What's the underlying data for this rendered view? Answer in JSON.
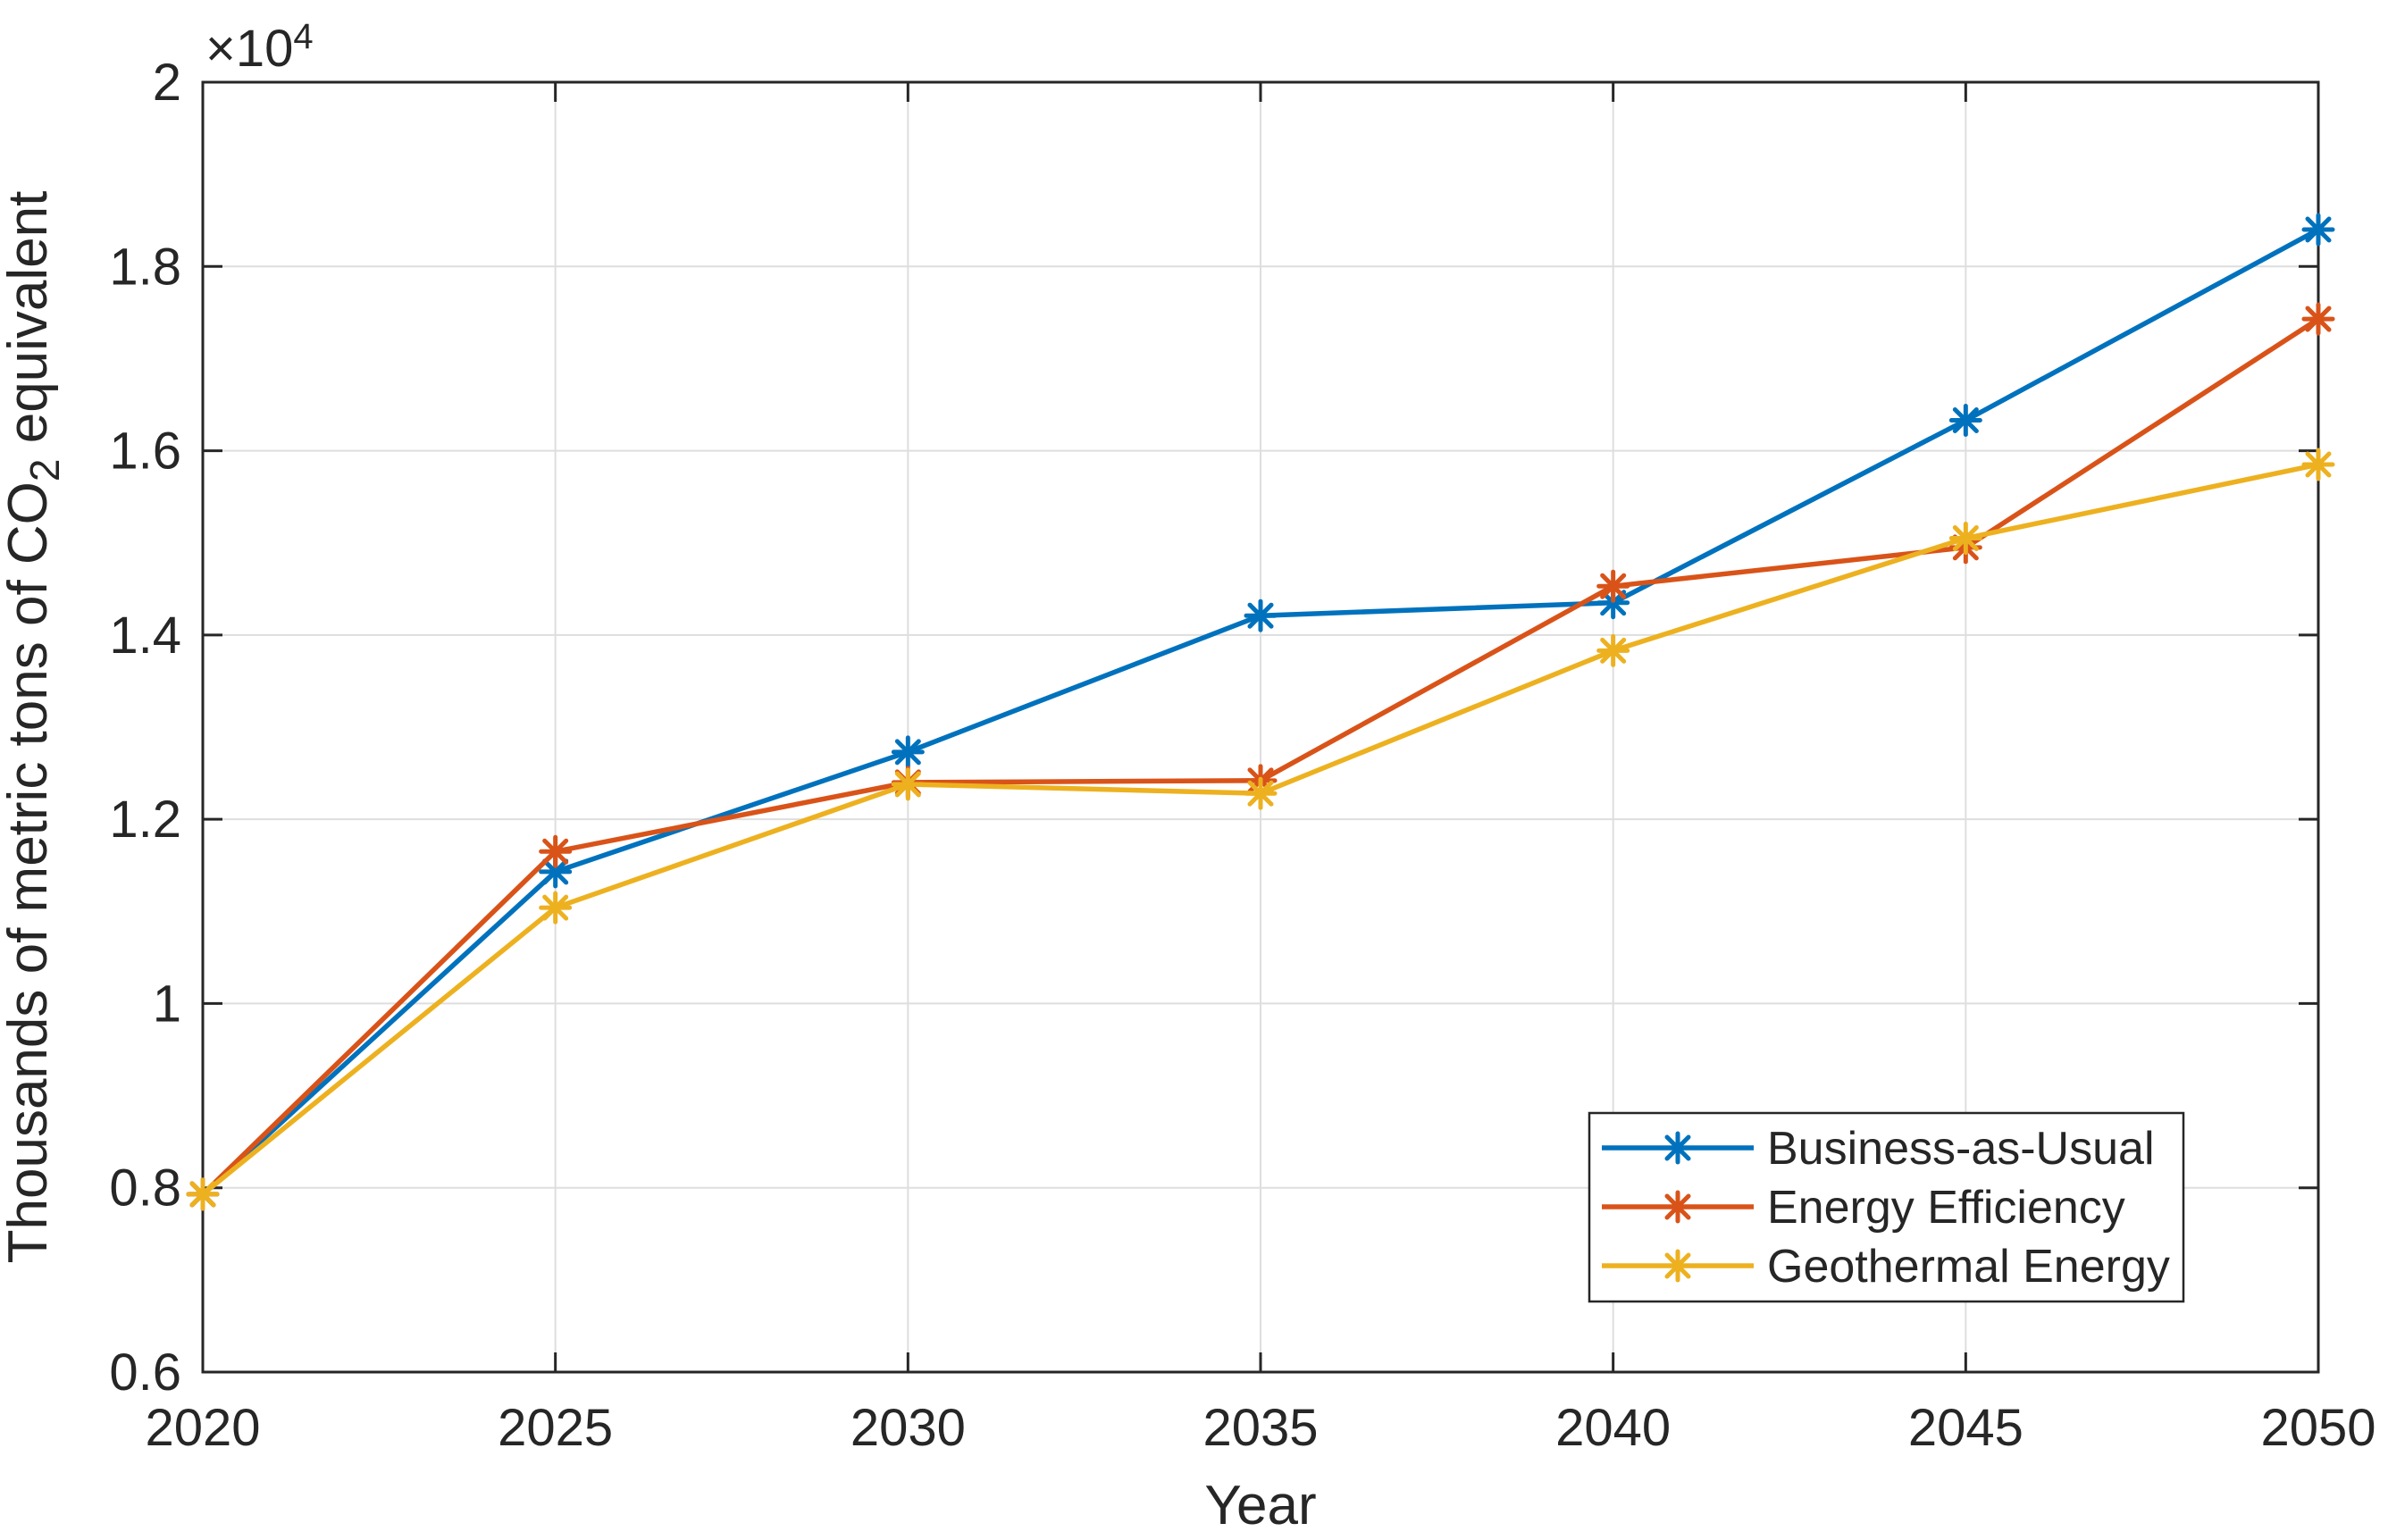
{
  "figure": {
    "background": "#FFFFFF",
    "exponent_label": {
      "base": "×10",
      "sup": "4"
    }
  },
  "chart_data": {
    "type": "line",
    "title": "",
    "xlabel": "Year",
    "ylabel": {
      "prefix": "Thousands of metric tons of CO",
      "sub": "2",
      "suffix": " equivalent"
    },
    "x": [
      2020,
      2025,
      2030,
      2035,
      2040,
      2045,
      2050
    ],
    "x_tick_labels": [
      "2020",
      "2025",
      "2030",
      "2035",
      "2040",
      "2045",
      "2050"
    ],
    "xlim": [
      2020,
      2050
    ],
    "y_ticks": [
      6000,
      8000,
      10000,
      12000,
      14000,
      16000,
      18000,
      20000
    ],
    "y_tick_labels": [
      "0.6",
      "0.8",
      "1",
      "1.2",
      "1.4",
      "1.6",
      "1.8",
      "2"
    ],
    "ylim": [
      6000,
      20000
    ],
    "y_axis_multiplier": 10000,
    "grid": true,
    "axis_color": "#262626",
    "grid_color": "#DEDEDE",
    "legend": {
      "position": "inside-bottom-right",
      "background": "#FFFFFF",
      "border_color": "#262626"
    },
    "series": [
      {
        "name": "Business-as-Usual",
        "color": "#0072BD",
        "marker": "asterisk",
        "values": [
          7930,
          11430,
          12730,
          14210,
          14350,
          16330,
          18400
        ]
      },
      {
        "name": "Energy Efficiency",
        "color": "#D95319",
        "marker": "asterisk",
        "values": [
          7930,
          11650,
          12400,
          12420,
          14530,
          14950,
          17430
        ]
      },
      {
        "name": "Geothermal Energy",
        "color": "#EDB120",
        "marker": "asterisk",
        "values": [
          7930,
          11040,
          12380,
          12280,
          13830,
          15050,
          15850
        ]
      }
    ]
  }
}
